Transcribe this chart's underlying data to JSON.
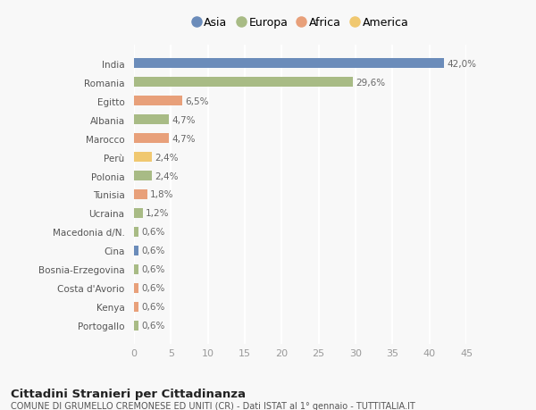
{
  "countries": [
    "India",
    "Romania",
    "Egitto",
    "Albania",
    "Marocco",
    "Perù",
    "Polonia",
    "Tunisia",
    "Ucraina",
    "Macedonia d/N.",
    "Cina",
    "Bosnia-Erzegovina",
    "Costa d'Avorio",
    "Kenya",
    "Portogallo"
  ],
  "values": [
    42.0,
    29.6,
    6.5,
    4.7,
    4.7,
    2.4,
    2.4,
    1.8,
    1.2,
    0.6,
    0.6,
    0.6,
    0.6,
    0.6,
    0.6
  ],
  "labels": [
    "42,0%",
    "29,6%",
    "6,5%",
    "4,7%",
    "4,7%",
    "2,4%",
    "2,4%",
    "1,8%",
    "1,2%",
    "0,6%",
    "0,6%",
    "0,6%",
    "0,6%",
    "0,6%",
    "0,6%"
  ],
  "continents": [
    "Asia",
    "Europa",
    "Africa",
    "Europa",
    "Africa",
    "America",
    "Europa",
    "Africa",
    "Europa",
    "Europa",
    "Asia",
    "Europa",
    "Africa",
    "Africa",
    "Europa"
  ],
  "continent_colors": {
    "Asia": "#6b8cba",
    "Europa": "#a8bb85",
    "Africa": "#e8a07a",
    "America": "#f0c870"
  },
  "legend_order": [
    "Asia",
    "Europa",
    "Africa",
    "America"
  ],
  "title": "Cittadini Stranieri per Cittadinanza",
  "subtitle": "COMUNE DI GRUMELLO CREMONESE ED UNITI (CR) - Dati ISTAT al 1° gennaio - TUTTITALIA.IT",
  "xlim": [
    0,
    45
  ],
  "xticks": [
    0,
    5,
    10,
    15,
    20,
    25,
    30,
    35,
    40,
    45
  ],
  "background_color": "#f8f8f8",
  "grid_color": "#ffffff",
  "bar_height": 0.55
}
